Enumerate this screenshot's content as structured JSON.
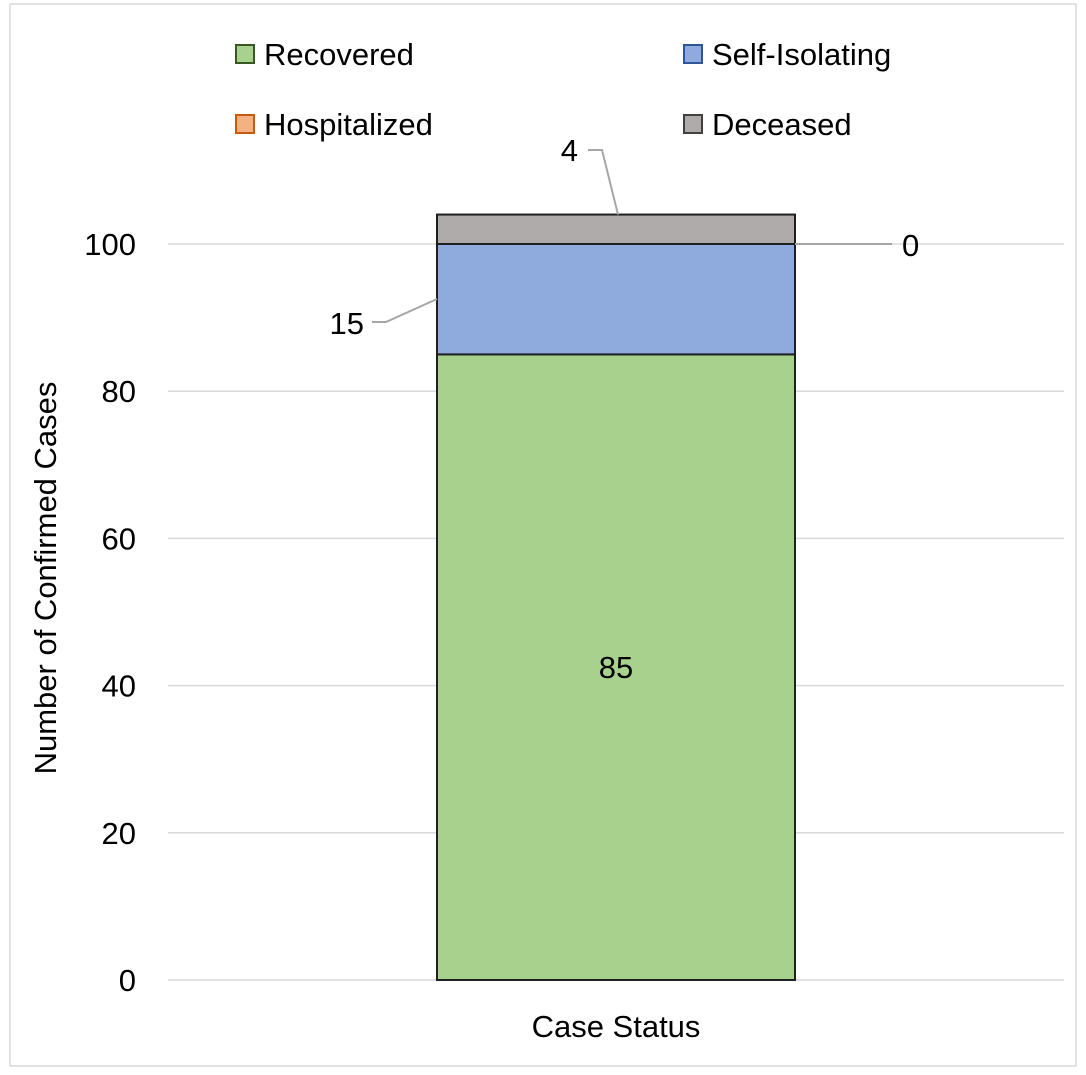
{
  "chart_data": {
    "type": "bar",
    "stacked": true,
    "categories": [
      "Case Status"
    ],
    "series": [
      {
        "name": "Recovered",
        "values": [
          85
        ],
        "color": "#a9d18e",
        "border": "#385723"
      },
      {
        "name": "Self-Isolating",
        "values": [
          15
        ],
        "color": "#8faadc",
        "border": "#2f5597"
      },
      {
        "name": "Hospitalized",
        "values": [
          0
        ],
        "color": "#f4b183",
        "border": "#c55a11"
      },
      {
        "name": "Deceased",
        "values": [
          4
        ],
        "color": "#afabab",
        "border": "#404040"
      }
    ],
    "data_labels": [
      "85",
      "15",
      "0",
      "4"
    ],
    "title": "",
    "xlabel": "Case Status",
    "ylabel": "Number of Confirmed Cases",
    "ylim": [
      0,
      100
    ],
    "yticks": [
      "0",
      "20",
      "40",
      "60",
      "80",
      "100"
    ],
    "grid": true,
    "legend_position": "top"
  }
}
